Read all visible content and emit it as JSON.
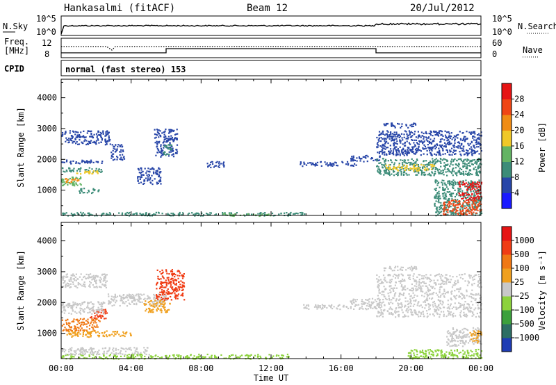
{
  "header": {
    "station": "Hankasalmi (fitACF)",
    "beam": "Beam 12",
    "date": "20/Jul/2012"
  },
  "status_panels": {
    "nsky_label": "N.Sky",
    "nsky_ticks": [
      "10^5",
      "10^0"
    ],
    "nsearch_label": "N.Search",
    "nsearch_ticks": [
      "10^5",
      "10^0"
    ],
    "freq_label_line1": "Freq.",
    "freq_label_line2": "[MHz]",
    "freq_ticks": [
      "12",
      "8"
    ],
    "nave_label": "Nave",
    "nave_ticks": [
      "60",
      "0"
    ],
    "cpid_label": "CPID",
    "cpid_text": "normal (fast stereo) 153"
  },
  "chart_data": [
    {
      "type": "heatmap",
      "name": "power",
      "ylabel": "Slant Range [km]",
      "xlabel": "Time UT",
      "x_ticks": [
        "00:00",
        "04:00",
        "08:00",
        "12:00",
        "16:00",
        "20:00",
        "00:00"
      ],
      "xlim_hours": [
        0,
        24
      ],
      "y_ticks": [
        1000,
        2000,
        3000,
        4000
      ],
      "ylim": [
        180,
        4600
      ],
      "colorbar_label": "Power [dB]",
      "colorbar_ticks": [
        "4",
        "8",
        "12",
        "16",
        "20",
        "24",
        "28"
      ],
      "colorbar_colors": [
        "#1a1aff",
        "#2846a8",
        "#3c8c78",
        "#64b464",
        "#f0c828",
        "#f08c14",
        "#f04614",
        "#e61414"
      ]
    },
    {
      "type": "heatmap",
      "name": "velocity",
      "ylabel": "Slant Range [km]",
      "xlabel": "Time UT",
      "x_ticks": [
        "00:00",
        "04:00",
        "08:00",
        "12:00",
        "16:00",
        "20:00",
        "00:00"
      ],
      "xlim_hours": [
        0,
        24
      ],
      "y_ticks": [
        1000,
        2000,
        3000,
        4000
      ],
      "ylim": [
        180,
        4600
      ],
      "colorbar_label": "Velocity [m s⁻¹]",
      "colorbar_ticks": [
        "1000",
        "500",
        "100",
        "25",
        "−25",
        "−100",
        "−500",
        "−1000"
      ],
      "colorbar_colors": [
        "#1e3cb4",
        "#2d6e64",
        "#3ca03c",
        "#8cd23c",
        "#c8c8c8",
        "#f0a01e",
        "#f07814",
        "#f03c14",
        "#e61414"
      ]
    }
  ],
  "regions": {
    "power": [
      {
        "t0": 0.0,
        "t1": 2.8,
        "r0": 2500,
        "r1": 2950,
        "color": "#2846a8"
      },
      {
        "t0": 0.0,
        "t1": 1.2,
        "r0": 1150,
        "r1": 1450,
        "color": "#64b464"
      },
      {
        "t0": 0.2,
        "t1": 1.0,
        "r0": 1250,
        "r1": 1400,
        "color": "#f08c14"
      },
      {
        "t0": 0.0,
        "t1": 2.3,
        "r0": 1600,
        "r1": 1750,
        "color": "#3c8c78"
      },
      {
        "t0": 0.8,
        "t1": 2.1,
        "r0": 1550,
        "r1": 1650,
        "color": "#f0c828"
      },
      {
        "t0": 0.0,
        "t1": 2.5,
        "r0": 1880,
        "r1": 2000,
        "color": "#2846a8"
      },
      {
        "t0": 1.0,
        "t1": 2.2,
        "r0": 920,
        "r1": 1080,
        "color": "#3c8c78"
      },
      {
        "t0": 4.3,
        "t1": 5.7,
        "r0": 1200,
        "r1": 1750,
        "color": "#2846a8"
      },
      {
        "t0": 5.3,
        "t1": 6.6,
        "r0": 2100,
        "r1": 3000,
        "color": "#2846a8"
      },
      {
        "t0": 5.8,
        "t1": 6.3,
        "r0": 2150,
        "r1": 2500,
        "color": "#3c8c78"
      },
      {
        "t0": 2.8,
        "t1": 3.6,
        "r0": 2000,
        "r1": 2500,
        "color": "#2846a8"
      },
      {
        "t0": 8.2,
        "t1": 9.3,
        "r0": 1750,
        "r1": 1950,
        "color": "#2846a8"
      },
      {
        "t0": 13.6,
        "t1": 16.9,
        "r0": 1800,
        "r1": 1950,
        "color": "#2846a8"
      },
      {
        "t0": 16.5,
        "t1": 18.2,
        "r0": 1950,
        "r1": 2150,
        "color": "#2846a8"
      },
      {
        "t0": 18.0,
        "t1": 24.0,
        "r0": 1500,
        "r1": 2050,
        "color": "#3c8c78"
      },
      {
        "t0": 18.5,
        "t1": 21.3,
        "r0": 1650,
        "r1": 1850,
        "color": "#f0c828"
      },
      {
        "t0": 18.0,
        "t1": 24.0,
        "r0": 2150,
        "r1": 2950,
        "color": "#2846a8"
      },
      {
        "t0": 18.4,
        "t1": 20.3,
        "r0": 3050,
        "r1": 3200,
        "color": "#2846a8"
      },
      {
        "t0": 21.3,
        "t1": 24.0,
        "r0": 200,
        "r1": 1350,
        "color": "#3c8c78"
      },
      {
        "t0": 21.8,
        "t1": 24.0,
        "r0": 230,
        "r1": 700,
        "color": "#f04614"
      },
      {
        "t0": 22.7,
        "t1": 24.0,
        "r0": 700,
        "r1": 1300,
        "color": "#e61414"
      },
      {
        "t0": 0.0,
        "t1": 14.0,
        "r0": 190,
        "r1": 300,
        "color": "#3c8c78"
      },
      {
        "t0": 9.0,
        "t1": 12.0,
        "r0": 180,
        "r1": 260,
        "color": "#64b464"
      }
    ],
    "velocity": [
      {
        "t0": 0.0,
        "t1": 2.6,
        "r0": 2500,
        "r1": 2950,
        "color": "#c8c8c8"
      },
      {
        "t0": 0.0,
        "t1": 2.2,
        "r0": 1100,
        "r1": 1500,
        "color": "#f07814"
      },
      {
        "t0": 1.6,
        "t1": 2.6,
        "r0": 1500,
        "r1": 1800,
        "color": "#f03c14"
      },
      {
        "t0": 0.3,
        "t1": 4.0,
        "r0": 900,
        "r1": 1100,
        "color": "#f0a01e"
      },
      {
        "t0": 0.0,
        "t1": 2.5,
        "r0": 1650,
        "r1": 2050,
        "color": "#c8c8c8"
      },
      {
        "t0": 2.6,
        "t1": 6.0,
        "r0": 1900,
        "r1": 2300,
        "color": "#c8c8c8"
      },
      {
        "t0": 5.4,
        "t1": 7.0,
        "r0": 2100,
        "r1": 3100,
        "color": "#f03c14"
      },
      {
        "t0": 4.7,
        "t1": 6.2,
        "r0": 1700,
        "r1": 2100,
        "color": "#f0a01e"
      },
      {
        "t0": 13.7,
        "t1": 18.0,
        "r0": 1800,
        "r1": 1950,
        "color": "#c8c8c8"
      },
      {
        "t0": 16.5,
        "t1": 18.2,
        "r0": 1950,
        "r1": 2150,
        "color": "#c8c8c8"
      },
      {
        "t0": 18.0,
        "t1": 24.0,
        "r0": 1550,
        "r1": 2950,
        "color": "#c8c8c8"
      },
      {
        "t0": 18.4,
        "t1": 20.3,
        "r0": 3050,
        "r1": 3200,
        "color": "#c8c8c8"
      },
      {
        "t0": 19.8,
        "t1": 24.0,
        "r0": 180,
        "r1": 500,
        "color": "#8cd23c"
      },
      {
        "t0": 22.0,
        "t1": 24.0,
        "r0": 600,
        "r1": 1200,
        "color": "#c8c8c8"
      },
      {
        "t0": 23.3,
        "t1": 24.0,
        "r0": 700,
        "r1": 1100,
        "color": "#f0a01e"
      },
      {
        "t0": 0.0,
        "t1": 13.0,
        "r0": 190,
        "r1": 340,
        "color": "#8cd23c"
      },
      {
        "t0": 0.0,
        "t1": 5.0,
        "r0": 330,
        "r1": 560,
        "color": "#c8c8c8"
      }
    ]
  }
}
